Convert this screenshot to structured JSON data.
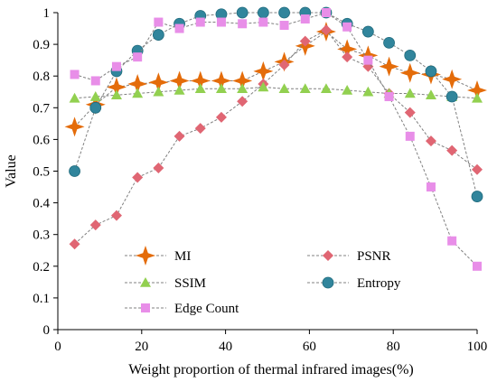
{
  "chart_data": {
    "type": "line",
    "title": "",
    "xlabel": "Weight proportion of thermal infrared images(%)",
    "ylabel": "Value",
    "xlim": [
      0,
      100
    ],
    "ylim": [
      0,
      1
    ],
    "xticks": [
      "0",
      "20",
      "40",
      "60",
      "80",
      "100"
    ],
    "yticks": [
      "0",
      "0.1",
      "0.2",
      "0.3",
      "0.4",
      "0.5",
      "0.6",
      "0.7",
      "0.8",
      "0.9",
      "1"
    ],
    "grid": false,
    "legend_position": "bottom-inside",
    "x": [
      4,
      9,
      14,
      19,
      24,
      29,
      34,
      39,
      44,
      49,
      54,
      59,
      64,
      69,
      74,
      79,
      84,
      89,
      94,
      100
    ],
    "series": [
      {
        "name": "MI",
        "marker": "star4",
        "color": "#E46C0A",
        "values": [
          0.64,
          0.71,
          0.765,
          0.775,
          0.78,
          0.785,
          0.785,
          0.785,
          0.785,
          0.815,
          0.845,
          0.895,
          0.94,
          0.885,
          0.865,
          0.83,
          0.81,
          0.805,
          0.79,
          0.755
        ]
      },
      {
        "name": "PSNR",
        "marker": "diamond",
        "color": "#E06673",
        "values": [
          0.27,
          0.33,
          0.36,
          0.48,
          0.51,
          0.61,
          0.635,
          0.67,
          0.72,
          0.775,
          0.835,
          0.91,
          0.945,
          0.86,
          0.83,
          0.745,
          0.685,
          0.595,
          0.565,
          0.505
        ]
      },
      {
        "name": "SSIM",
        "marker": "triangle",
        "color": "#92D050",
        "values": [
          0.73,
          0.735,
          0.74,
          0.745,
          0.75,
          0.755,
          0.76,
          0.76,
          0.76,
          0.765,
          0.76,
          0.76,
          0.76,
          0.755,
          0.75,
          0.745,
          0.745,
          0.74,
          0.735,
          0.73
        ]
      },
      {
        "name": "Entropy",
        "marker": "circle",
        "color": "#31859C",
        "values": [
          0.5,
          0.7,
          0.815,
          0.88,
          0.93,
          0.965,
          0.99,
          0.995,
          1.0,
          1.0,
          1.0,
          1.0,
          1.0,
          0.965,
          0.94,
          0.905,
          0.865,
          0.815,
          0.735,
          0.42
        ]
      },
      {
        "name": "Edge Count",
        "marker": "square",
        "color": "#E88EE8",
        "values": [
          0.805,
          0.785,
          0.83,
          0.86,
          0.97,
          0.95,
          0.97,
          0.97,
          0.965,
          0.97,
          0.96,
          0.98,
          1.0,
          0.955,
          0.85,
          0.735,
          0.61,
          0.45,
          0.28,
          0.2
        ]
      }
    ]
  }
}
